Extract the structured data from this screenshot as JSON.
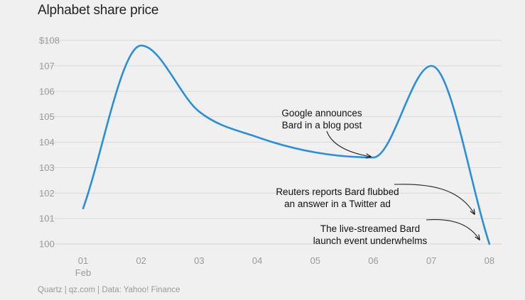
{
  "chart_data": {
    "type": "line",
    "title": "Alphabet share price",
    "xlabel": "",
    "ylabel": "",
    "x": [
      "01",
      "02",
      "03",
      "04",
      "05",
      "06",
      "07",
      "08"
    ],
    "x_sublabels": {
      "01": "Feb"
    },
    "series": [
      {
        "values": [
          101.4,
          107.8,
          105.2,
          104.2,
          103.6,
          103.4,
          107.0,
          100.0
        ]
      }
    ],
    "ylim": [
      100,
      108
    ],
    "yticks": [
      100,
      101,
      102,
      103,
      104,
      105,
      106,
      107,
      108
    ],
    "ytick_labels": [
      "100",
      "101",
      "102",
      "103",
      "104",
      "105",
      "106",
      "107",
      "$108"
    ],
    "grid": true,
    "line_color": "#2a8fd8",
    "annotations": [
      {
        "lines": [
          "Google announces",
          "Bard in a blog post"
        ],
        "x": "06",
        "y": 103.4
      },
      {
        "lines": [
          "Reuters reports Bard flubbed",
          "an answer in a Twitter ad"
        ],
        "x": "08",
        "y": 101.4
      },
      {
        "lines": [
          "The live-streamed Bard",
          "launch event underwhelms"
        ],
        "x": "08",
        "y": 100.3
      }
    ]
  },
  "source": "Quartz | qz.com | Data: Yahoo! Finance"
}
